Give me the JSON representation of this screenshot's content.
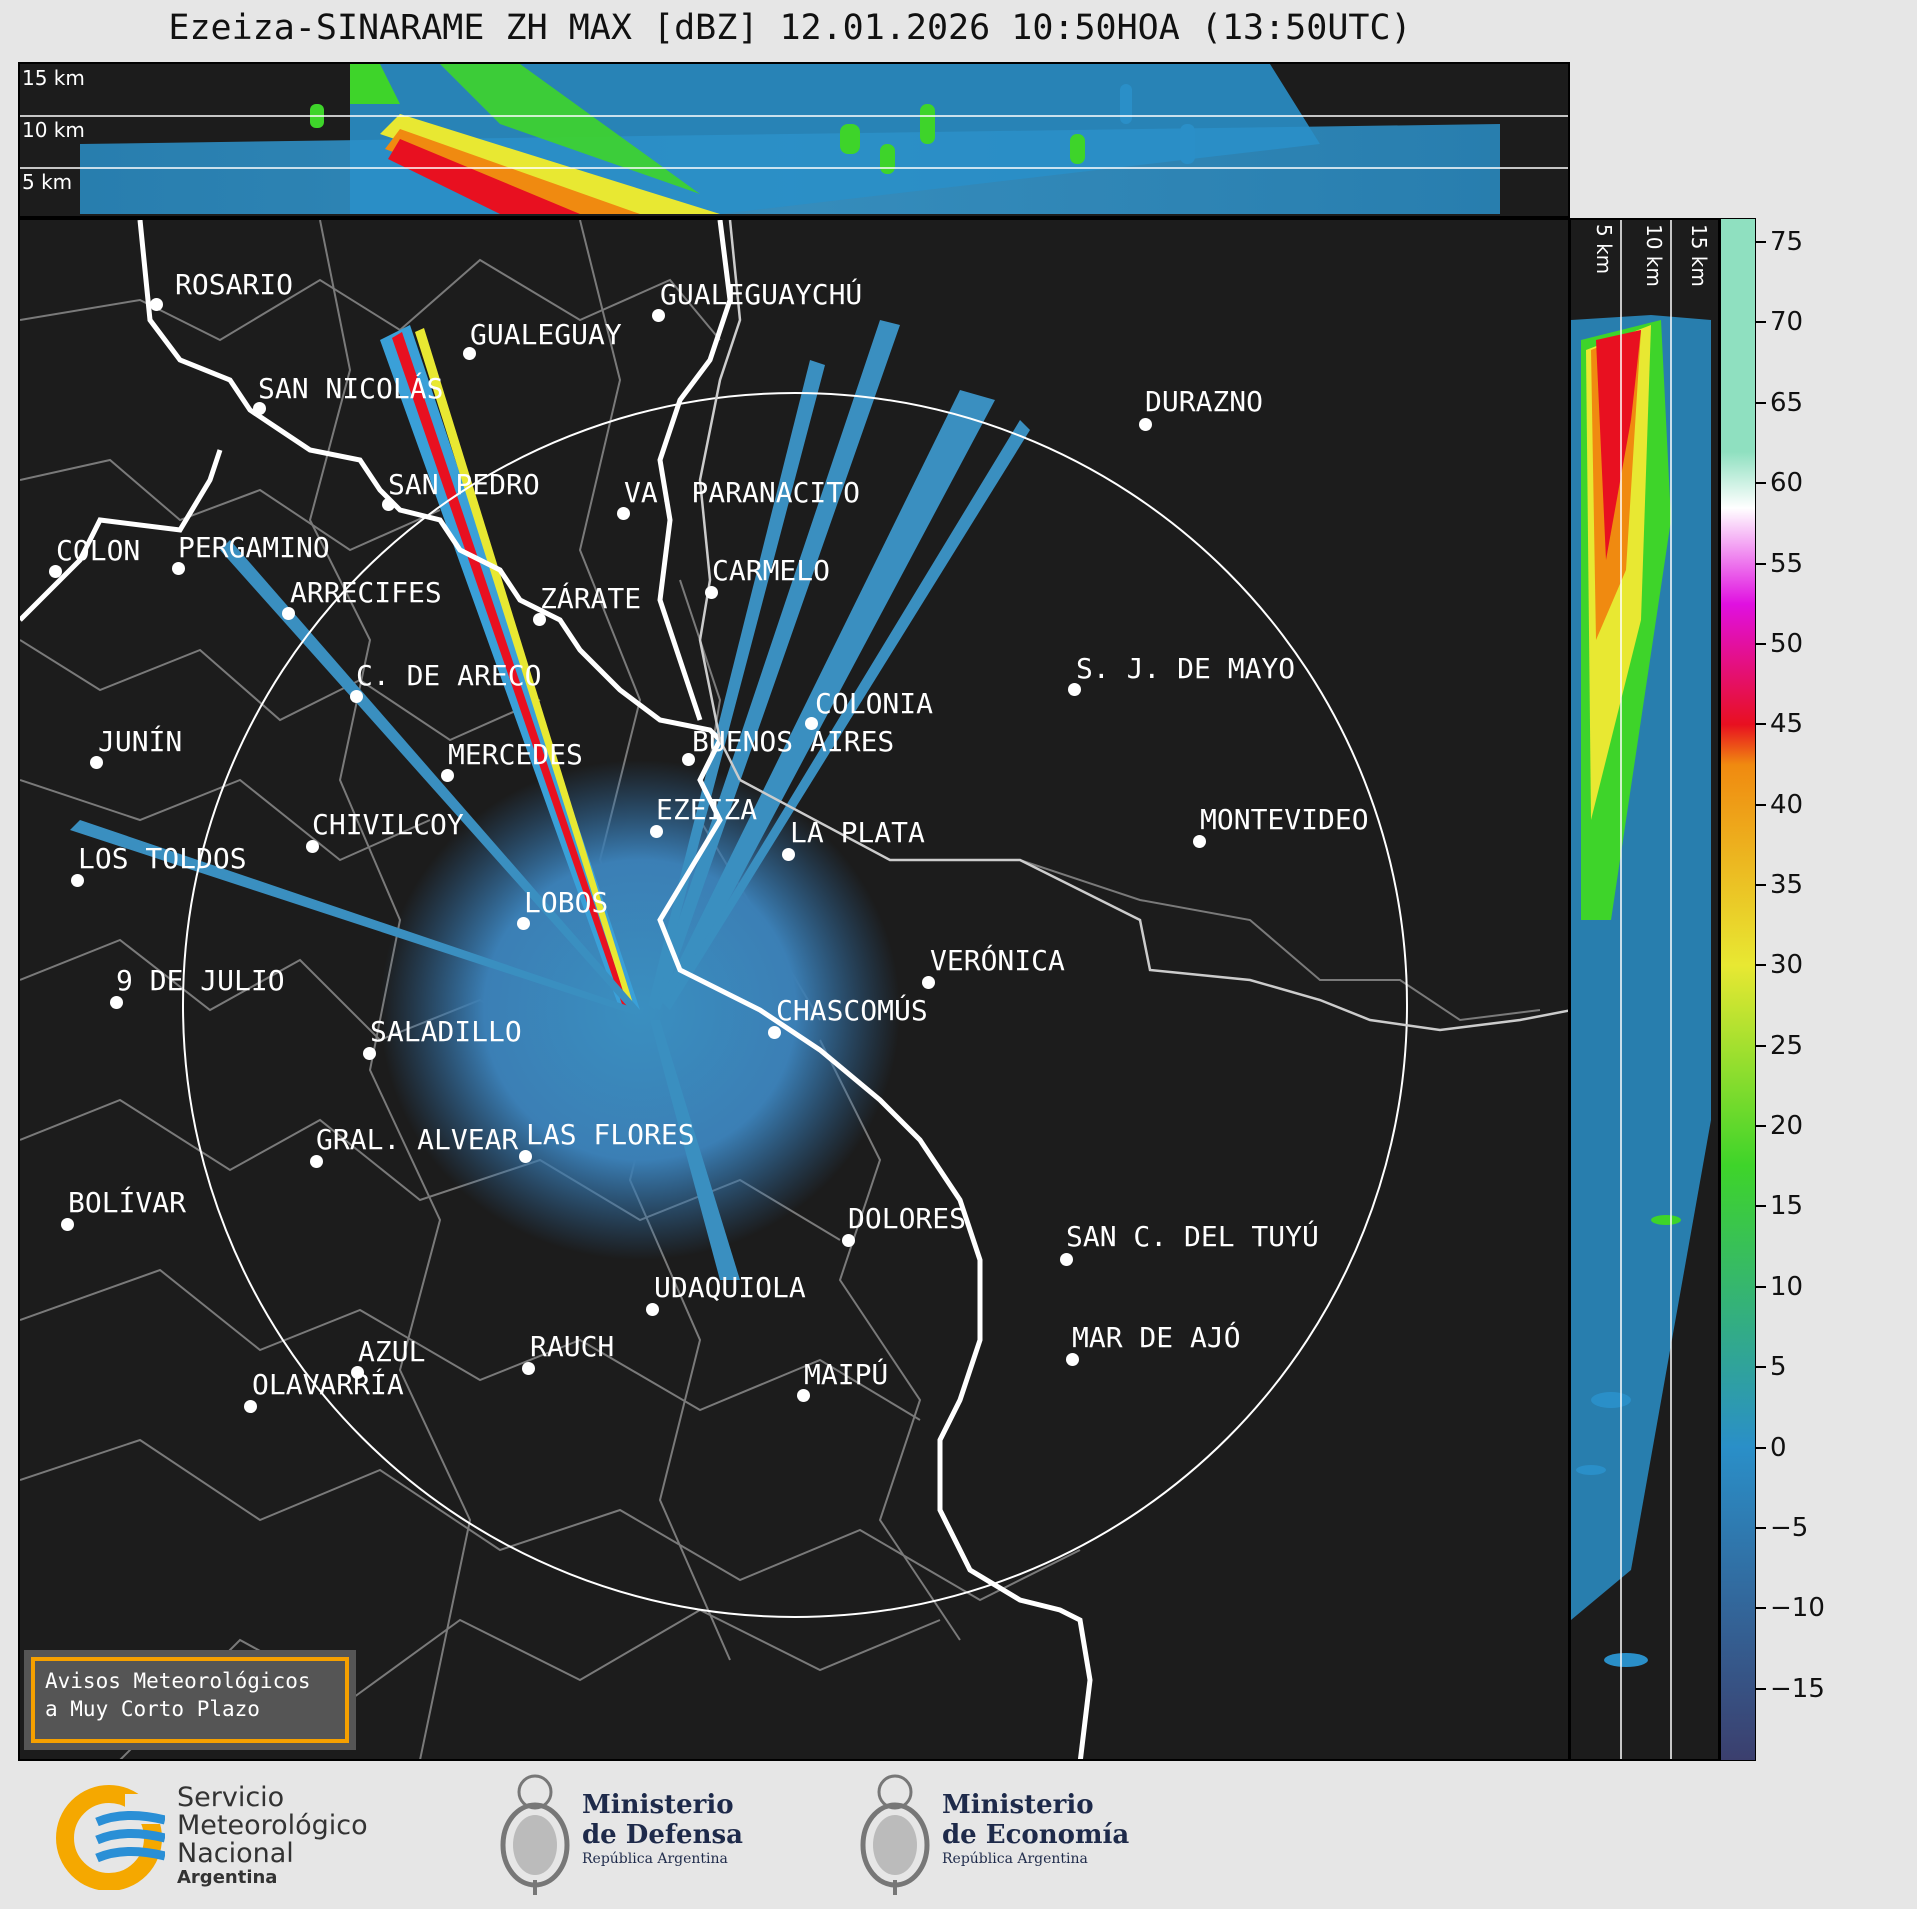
{
  "title": "Ezeiza-SINARAME ZH MAX [dBZ] 12.01.2026 10:50HOA (13:50UTC)",
  "top_panel": {
    "altitude_labels": [
      "15 km",
      "10 km",
      "5 km"
    ]
  },
  "side_panel": {
    "altitude_labels": [
      "5 km",
      "10 km",
      "15 km"
    ]
  },
  "colorbar": {
    "unit": "dBZ",
    "ticks": [
      "75",
      "70",
      "65",
      "60",
      "55",
      "50",
      "45",
      "40",
      "35",
      "30",
      "25",
      "20",
      "15",
      "10",
      "5",
      "0",
      "−5",
      "−10",
      "−15"
    ],
    "range": [
      -19.5,
      76.5
    ],
    "colors": {
      "clear": "#3b3f6e",
      "low": "#2a8fc8",
      "green": "#3ed42a",
      "yellow": "#e8e832",
      "orange": "#f08a10",
      "red": "#e81020",
      "magenta": "#e010e0",
      "white": "#ffffff",
      "aqua": "#8fe0c0"
    }
  },
  "map": {
    "radar_site": "EZEIZA",
    "cities": [
      {
        "name": "ROSARIO"
      },
      {
        "name": "GUALEGUAYCHÚ"
      },
      {
        "name": "GUALEGUAY"
      },
      {
        "name": "SAN NICOLÁS"
      },
      {
        "name": "DURAZNO"
      },
      {
        "name": "SAN PEDRO"
      },
      {
        "name": "VA. PARANACITO"
      },
      {
        "name": "COLON"
      },
      {
        "name": "PERGAMINO"
      },
      {
        "name": "CARMELO"
      },
      {
        "name": "ARRECIFES"
      },
      {
        "name": "ZÁRATE"
      },
      {
        "name": "C. DE ARECO"
      },
      {
        "name": "S. J. DE MAYO"
      },
      {
        "name": "COLONIA"
      },
      {
        "name": "JUNÍN"
      },
      {
        "name": "BUENOS AIRES"
      },
      {
        "name": "MERCEDES"
      },
      {
        "name": "EZEIZA"
      },
      {
        "name": "MONTEVIDEO"
      },
      {
        "name": "CHIVILCOY"
      },
      {
        "name": "LA PLATA"
      },
      {
        "name": "LOS TOLDOS"
      },
      {
        "name": "LOBOS"
      },
      {
        "name": "VERÓNICA"
      },
      {
        "name": "9 DE JULIO"
      },
      {
        "name": "CHASCOMÚS"
      },
      {
        "name": "SALADILLO"
      },
      {
        "name": "GRAL. ALVEAR"
      },
      {
        "name": "LAS FLORES"
      },
      {
        "name": "BOLÍVAR"
      },
      {
        "name": "DOLORES"
      },
      {
        "name": "SAN C. DEL TUYÚ"
      },
      {
        "name": "UDAQUIOLA"
      },
      {
        "name": "MAR DE AJÓ"
      },
      {
        "name": "AZUL"
      },
      {
        "name": "RAUCH"
      },
      {
        "name": "OLAVARRÍA"
      },
      {
        "name": "MAIPÚ"
      }
    ]
  },
  "warning_box": {
    "line1": "Avisos Meteorológicos",
    "line2": "a Muy Corto Plazo"
  },
  "logos": {
    "smn": {
      "line1": "Servicio",
      "line2": "Meteorológico",
      "line3": "Nacional",
      "line4": "Argentina"
    },
    "defensa": {
      "line1": "Ministerio",
      "line2": "de Defensa",
      "line3": "República Argentina"
    },
    "economia": {
      "line1": "Ministerio",
      "line2": "de Economía",
      "line3": "República Argentina"
    }
  }
}
